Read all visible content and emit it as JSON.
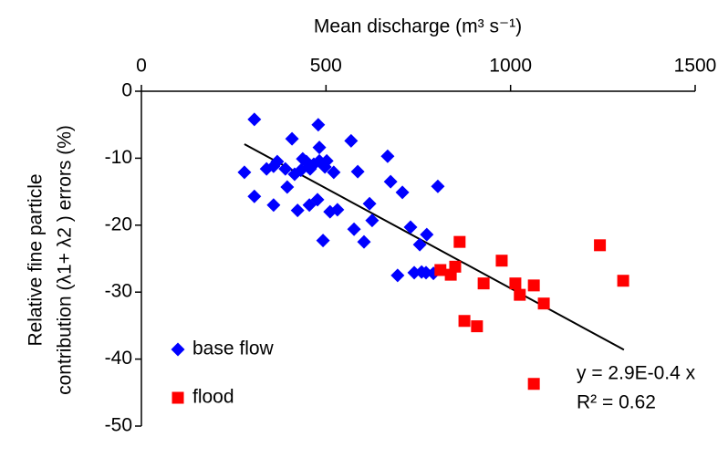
{
  "chart_data": {
    "type": "scatter",
    "title": "Mean discharge (m³ s⁻¹)",
    "y_label_lines": [
      "Relative fine particle",
      "contribution (λ1+ λ2 ) errors (%)"
    ],
    "xlim": [
      0,
      1500
    ],
    "xticks": [
      0,
      500,
      1000,
      1500
    ],
    "ylim": [
      -50,
      0
    ],
    "yticks": [
      0,
      -10,
      -20,
      -30,
      -40,
      -50
    ],
    "series": [
      {
        "name": "base flow",
        "color": "#0000ff",
        "marker": "diamond",
        "x": [
          306,
          279,
          306,
          339,
          358,
          368,
          358,
          390,
          395,
          408,
          415,
          423,
          432,
          437,
          447,
          452,
          457,
          455,
          467,
          477,
          482,
          479,
          482,
          492,
          497,
          502,
          521,
          531,
          511,
          568,
          576,
          586,
          603,
          618,
          625,
          667,
          675,
          707,
          729,
          739,
          754,
          759,
          771,
          694,
          791,
          773,
          803
        ],
        "y": [
          -4.2,
          -12.1,
          -15.7,
          -11.6,
          -11.2,
          -10.5,
          -17.0,
          -11.6,
          -14.3,
          -7.1,
          -12.4,
          -17.8,
          -11.8,
          -10.1,
          -10.5,
          -11.3,
          -11.6,
          -17.0,
          -10.9,
          -16.2,
          -10.4,
          -5.0,
          -8.4,
          -22.3,
          -11.3,
          -10.4,
          -12.1,
          -17.7,
          -18.0,
          -7.4,
          -20.6,
          -12.0,
          -22.5,
          -16.8,
          -19.3,
          -9.7,
          -13.5,
          -15.1,
          -20.3,
          -27.1,
          -22.9,
          -27.0,
          -27.1,
          -27.5,
          -27.2,
          -21.4,
          -14.2
        ]
      },
      {
        "name": "flood",
        "color": "#ff0000",
        "marker": "square",
        "x": [
          810,
          838,
          850,
          862,
          875,
          909,
          927,
          976,
          1013,
          1025,
          1063,
          1063,
          1090,
          1242,
          1305
        ],
        "y": [
          -26.7,
          -27.4,
          -26.2,
          -22.5,
          -34.3,
          -35.1,
          -28.7,
          -25.3,
          -28.7,
          -30.4,
          -29.0,
          -43.7,
          -31.7,
          -23.0,
          -28.3
        ]
      }
    ],
    "trendline": {
      "x": [
        279,
        1307
      ],
      "y": [
        -7.9,
        -38.6
      ],
      "color": "#000000"
    },
    "annotations": [
      "y = 2.9E-0.4 x",
      "R² = 0.62"
    ]
  }
}
